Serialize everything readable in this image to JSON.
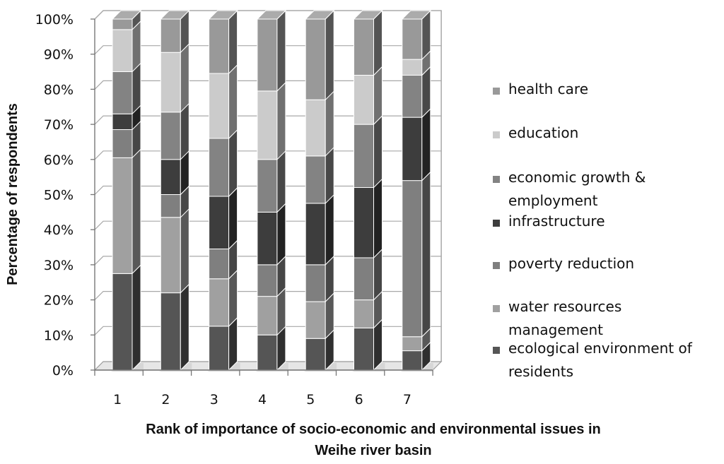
{
  "chart_data": {
    "type": "bar",
    "stacked": true,
    "percent": true,
    "categories": [
      "1",
      "2",
      "3",
      "4",
      "5",
      "6",
      "7"
    ],
    "series": [
      {
        "name": "ecological environment of residents",
        "color": "#555555",
        "values": [
          27.5,
          22,
          12.5,
          10,
          9,
          12,
          5.5
        ]
      },
      {
        "name": "water resources management",
        "color": "#a0a0a0",
        "values": [
          33,
          21.5,
          13.5,
          11,
          10.5,
          8,
          4
        ]
      },
      {
        "name": "poverty reduction",
        "color": "#7f7f7f",
        "values": [
          8,
          6.5,
          8.5,
          9,
          10.5,
          12,
          44.5
        ]
      },
      {
        "name": "infrastructure",
        "color": "#3d3d3d",
        "values": [
          4.5,
          10,
          15,
          15,
          17.5,
          20,
          18
        ]
      },
      {
        "name": "economic growth & employment",
        "color": "#838383",
        "values": [
          12,
          13.5,
          16.5,
          15,
          13.5,
          18,
          12
        ]
      },
      {
        "name": "education",
        "color": "#cbcbcb",
        "values": [
          12,
          17,
          18.5,
          19.5,
          16,
          14,
          4.5
        ]
      },
      {
        "name": "health care",
        "color": "#999999",
        "values": [
          3,
          9.5,
          15.5,
          20.5,
          23,
          16,
          11.5
        ]
      }
    ],
    "yticks": [
      "0%",
      "10%",
      "20%",
      "30%",
      "40%",
      "50%",
      "60%",
      "70%",
      "80%",
      "90%",
      "100%"
    ],
    "ylim": [
      0,
      100
    ],
    "ylabel": "Percentage of respondents",
    "xlabel": "Rank of importance of socio-economic and environmental issues in Weihe river basin",
    "xlabel_lines": [
      "Rank of importance of socio-economic and environmental issues in",
      "Weihe river basin"
    ],
    "legend_position": "right",
    "legend": [
      {
        "lines": [
          "health care"
        ],
        "color": "#999999"
      },
      {
        "lines": [
          "education"
        ],
        "color": "#cbcbcb"
      },
      {
        "lines": [
          "economic growth &",
          "employment"
        ],
        "color": "#838383"
      },
      {
        "lines": [
          "infrastructure"
        ],
        "color": "#3d3d3d"
      },
      {
        "lines": [
          "poverty reduction"
        ],
        "color": "#7f7f7f"
      },
      {
        "lines": [
          "water resources",
          "management"
        ],
        "color": "#a0a0a0"
      },
      {
        "lines": [
          "ecological environment of",
          "residents"
        ],
        "color": "#555555"
      }
    ],
    "grid": true
  }
}
